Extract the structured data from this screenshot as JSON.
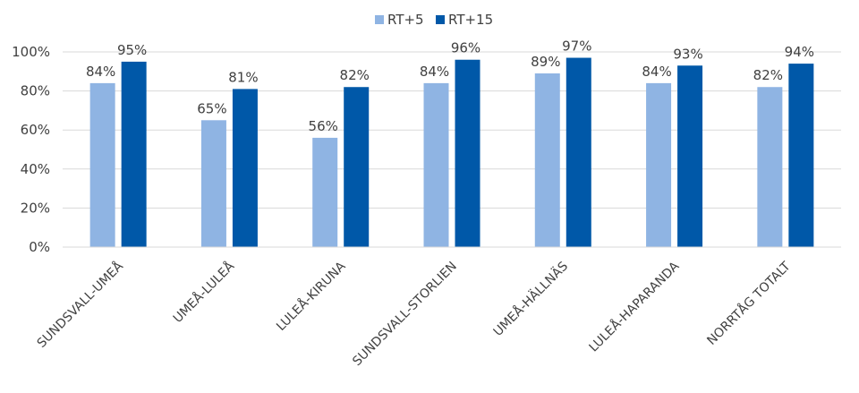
{
  "chart_data": {
    "type": "bar",
    "categories": [
      "SUNDSVALL-UMEÅ",
      "UMEÅ-LULEÅ",
      "LULEÅ-KIRUNA",
      "SUNDSVALL-STORLIEN",
      "UMEÅ-HÄLLNÄS",
      "LULEÅ-HAPARANDA",
      "NORRTÅG TOTALT"
    ],
    "series": [
      {
        "name": "RT+5",
        "values": [
          84,
          65,
          56,
          84,
          89,
          84,
          82
        ],
        "color": "#8FB4E3"
      },
      {
        "name": "RT+15",
        "values": [
          95,
          81,
          82,
          96,
          97,
          93,
          94
        ],
        "color": "#0058A8"
      }
    ],
    "value_suffix": "%",
    "ylim": [
      0,
      100
    ],
    "yticks": [
      "0%",
      "20%",
      "40%",
      "60%",
      "80%",
      "100%"
    ],
    "grid": true,
    "legend": "top-center"
  }
}
